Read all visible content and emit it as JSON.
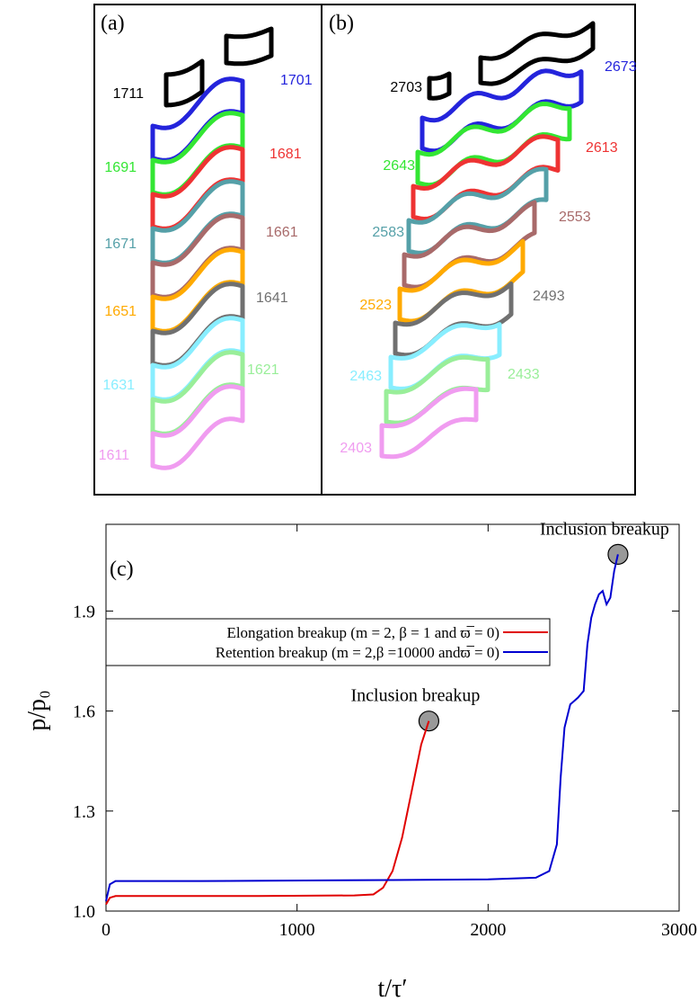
{
  "panels": [
    {
      "label": "(a)",
      "shapes": [
        {
          "label": "1711",
          "color": "#000000"
        },
        {
          "label": "1701",
          "color": "#2424dc"
        },
        {
          "label": "1691",
          "color": "#33e633"
        },
        {
          "label": "1681",
          "color": "#ee3333"
        },
        {
          "label": "1671",
          "color": "#55a0a8"
        },
        {
          "label": "1661",
          "color": "#a86a6a"
        },
        {
          "label": "1651",
          "color": "#ffaa00"
        },
        {
          "label": "1641",
          "color": "#707070"
        },
        {
          "label": "1631",
          "color": "#88eeff"
        },
        {
          "label": "1621",
          "color": "#99ee99"
        },
        {
          "label": "1611",
          "color": "#f09cf0"
        }
      ]
    },
    {
      "label": "(b)",
      "shapes": [
        {
          "label": "2703",
          "color": "#000000"
        },
        {
          "label": "2673",
          "color": "#2424dc"
        },
        {
          "label": "2643",
          "color": "#33e633"
        },
        {
          "label": "2613",
          "color": "#ee3333"
        },
        {
          "label": "2583",
          "color": "#55a0a8"
        },
        {
          "label": "2553",
          "color": "#a86a6a"
        },
        {
          "label": "2523",
          "color": "#ffaa00"
        },
        {
          "label": "2493",
          "color": "#707070"
        },
        {
          "label": "2463",
          "color": "#88eeff"
        },
        {
          "label": "2433",
          "color": "#99ee99"
        },
        {
          "label": "2403",
          "color": "#f09cf0"
        }
      ]
    }
  ],
  "chart_data": {
    "type": "line",
    "panel_label": "(c)",
    "xlabel": "t/τ′",
    "ylabel": "p/p₀",
    "xlim": [
      0,
      3000
    ],
    "ylim": [
      1.0,
      2.16
    ],
    "xticks": [
      0,
      1000,
      2000,
      3000
    ],
    "yticks": [
      {
        "value": 1.0,
        "label": "1.0"
      },
      {
        "value": 1.3,
        "label": "1.3"
      },
      {
        "value": 1.6,
        "label": "1.6"
      },
      {
        "value": 1.9,
        "label": "1.9"
      }
    ],
    "series": [
      {
        "name": "Elongation breakup (m = 2, β = 1 and ϖ̅ = 0)",
        "color": "#e00000",
        "x": [
          0,
          20,
          50,
          200,
          800,
          1300,
          1400,
          1450,
          1500,
          1550,
          1600,
          1650,
          1690
        ],
        "values": [
          1.02,
          1.04,
          1.045,
          1.045,
          1.045,
          1.047,
          1.05,
          1.07,
          1.12,
          1.22,
          1.36,
          1.5,
          1.57
        ]
      },
      {
        "name": "Retention breakup (m = 2,β =10000 andϖ̅ = 0)",
        "color": "#0000d0",
        "x": [
          0,
          20,
          50,
          500,
          1500,
          2000,
          2250,
          2320,
          2360,
          2380,
          2400,
          2430,
          2470,
          2500,
          2520,
          2540,
          2560,
          2580,
          2600,
          2620,
          2640,
          2660,
          2680
        ],
        "values": [
          1.03,
          1.08,
          1.09,
          1.09,
          1.093,
          1.095,
          1.1,
          1.12,
          1.2,
          1.4,
          1.55,
          1.62,
          1.64,
          1.66,
          1.8,
          1.88,
          1.92,
          1.95,
          1.96,
          1.92,
          1.94,
          2.02,
          2.07
        ]
      }
    ],
    "annotations": [
      {
        "text": "Inclusion breakup",
        "x": 1690,
        "y": 1.57
      },
      {
        "text": "Inclusion breakup",
        "x": 2680,
        "y": 2.07
      }
    ]
  }
}
